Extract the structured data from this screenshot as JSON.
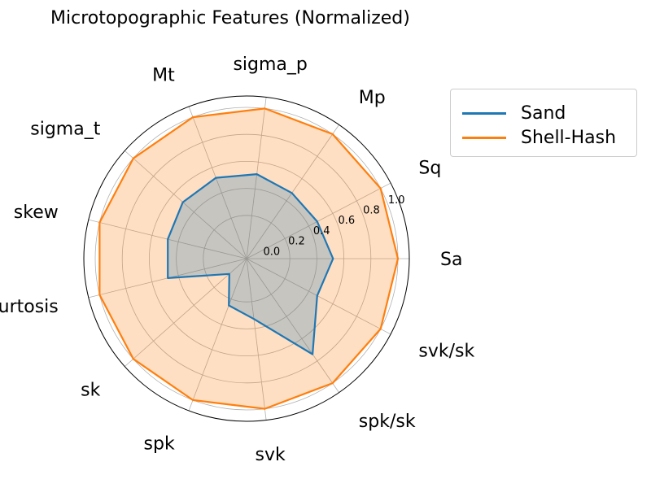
{
  "chart_data": {
    "type": "radar",
    "title": "Microtopographic Features (Normalized)",
    "categories": [
      "Sa",
      "Sq",
      "Mp",
      "sigma_p",
      "Mt",
      "sigma_t",
      "skew",
      "kurtosis",
      "sk",
      "spk",
      "svk",
      "spk/sk",
      "svk/sk"
    ],
    "rlim": [
      0,
      1.0
    ],
    "r_ticks": [
      "0.0",
      "0.2",
      "0.4",
      "0.6",
      "0.8",
      "1.0"
    ],
    "grid": true,
    "legend_position": "outside-right",
    "series": [
      {
        "name": "Sand",
        "color": "#1f77b4",
        "values": [
          0.52,
          0.47,
          0.47,
          0.51,
          0.52,
          0.51,
          0.48,
          0.48,
          0.05,
          0.25,
          0.33,
          0.74,
          0.47
        ]
      },
      {
        "name": "Shell-Hash",
        "color": "#ff7f0e",
        "values": [
          1.0,
          1.0,
          1.0,
          1.0,
          1.0,
          1.0,
          1.0,
          1.0,
          1.0,
          1.0,
          1.0,
          1.0,
          1.0
        ]
      }
    ]
  }
}
